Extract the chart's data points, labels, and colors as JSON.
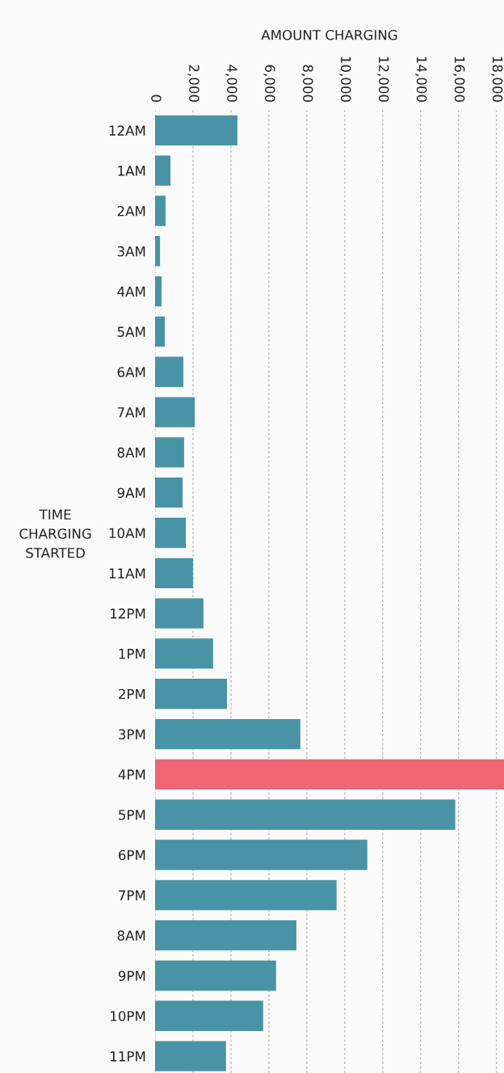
{
  "chart_data": {
    "type": "bar",
    "orientation": "horizontal",
    "xlabel": "AMOUNT CHARGING",
    "ylabel": "TIME\nCHARGING\nSTARTED",
    "categories": [
      "12AM",
      "1AM",
      "2AM",
      "3AM",
      "4AM",
      "5AM",
      "6AM",
      "7AM",
      "8AM",
      "9AM",
      "10AM",
      "11AM",
      "12PM",
      "1PM",
      "2PM",
      "3PM",
      "4PM",
      "5PM",
      "6PM",
      "7PM",
      "8AM",
      "9PM",
      "10PM",
      "11PM"
    ],
    "values": [
      4340,
      810,
      550,
      260,
      340,
      510,
      1490,
      2090,
      1530,
      1450,
      1620,
      2000,
      2550,
      3060,
      3790,
      7660,
      18400,
      15830,
      11190,
      9570,
      7450,
      6380,
      5700,
      3740
    ],
    "colors": [
      "#4893a6",
      "#4893a6",
      "#4893a6",
      "#4893a6",
      "#4893a6",
      "#4893a6",
      "#4893a6",
      "#4893a6",
      "#4893a6",
      "#4893a6",
      "#4893a6",
      "#4893a6",
      "#4893a6",
      "#4893a6",
      "#4893a6",
      "#4893a6",
      "#ee6673",
      "#4893a6",
      "#4893a6",
      "#4893a6",
      "#4893a6",
      "#4893a6",
      "#4893a6",
      "#4893a6"
    ],
    "xlim": [
      0,
      18400
    ],
    "xticks": [
      {
        "value": 0,
        "label": "0"
      },
      {
        "value": 2000,
        "label": "2,000"
      },
      {
        "value": 4000,
        "label": "4,000"
      },
      {
        "value": 6000,
        "label": "6,000"
      },
      {
        "value": 8000,
        "label": "8,000"
      },
      {
        "value": 10000,
        "label": "10,000"
      },
      {
        "value": 12000,
        "label": "12,000"
      },
      {
        "value": 14000,
        "label": "14,000"
      },
      {
        "value": 16000,
        "label": "16,000"
      },
      {
        "value": 18000,
        "label": "18,000"
      }
    ],
    "grid": "x"
  }
}
